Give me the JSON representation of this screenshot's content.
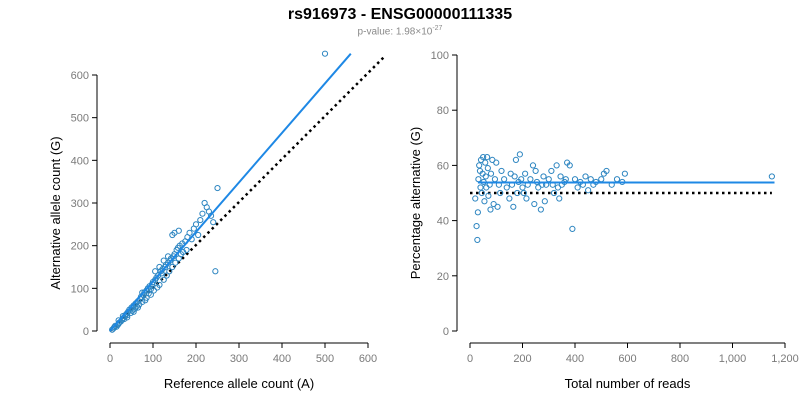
{
  "header": {
    "title": "rs916973 - ENSG00000111335",
    "pvalue_prefix": "p-value: 1.98×10",
    "pvalue_exponent": "-27"
  },
  "chart_data": [
    {
      "type": "scatter",
      "xlabel": "Reference allele count (A)",
      "ylabel": "Alternative allele count (G)",
      "xlim": [
        0,
        600
      ],
      "ylim": [
        0,
        600
      ],
      "xticks": [
        "0",
        "100",
        "200",
        "300",
        "400",
        "500",
        "600"
      ],
      "yticks": [
        "0",
        "100",
        "200",
        "300",
        "400",
        "500",
        "600"
      ],
      "xtick_values": [
        0,
        100,
        200,
        300,
        400,
        500,
        600
      ],
      "ytick_values": [
        0,
        100,
        200,
        300,
        400,
        500,
        600
      ],
      "fit_line": [
        [
          0,
          0
        ],
        [
          560,
          650
        ]
      ],
      "reference_line": [
        [
          0,
          0
        ],
        [
          640,
          645
        ]
      ],
      "points": [
        [
          5,
          3
        ],
        [
          8,
          6
        ],
        [
          10,
          9
        ],
        [
          12,
          12
        ],
        [
          15,
          10
        ],
        [
          18,
          14
        ],
        [
          20,
          17
        ],
        [
          22,
          20
        ],
        [
          25,
          22
        ],
        [
          28,
          26
        ],
        [
          30,
          30
        ],
        [
          33,
          28
        ],
        [
          35,
          35
        ],
        [
          38,
          40
        ],
        [
          40,
          37
        ],
        [
          42,
          45
        ],
        [
          45,
          50
        ],
        [
          48,
          42
        ],
        [
          50,
          55
        ],
        [
          52,
          48
        ],
        [
          55,
          60
        ],
        [
          58,
          52
        ],
        [
          60,
          65
        ],
        [
          62,
          58
        ],
        [
          65,
          70
        ],
        [
          68,
          62
        ],
        [
          70,
          75
        ],
        [
          72,
          80
        ],
        [
          75,
          68
        ],
        [
          78,
          85
        ],
        [
          80,
          90
        ],
        [
          82,
          72
        ],
        [
          85,
          95
        ],
        [
          88,
          100
        ],
        [
          90,
          88
        ],
        [
          92,
          105
        ],
        [
          95,
          98
        ],
        [
          98,
          110
        ],
        [
          100,
          115
        ],
        [
          102,
          95
        ],
        [
          105,
          120
        ],
        [
          108,
          125
        ],
        [
          110,
          102
        ],
        [
          112,
          130
        ],
        [
          115,
          108
        ],
        [
          118,
          140
        ],
        [
          120,
          135
        ],
        [
          122,
          145
        ],
        [
          125,
          120
        ],
        [
          128,
          150
        ],
        [
          130,
          155
        ],
        [
          132,
          130
        ],
        [
          135,
          160
        ],
        [
          138,
          140
        ],
        [
          140,
          165
        ],
        [
          142,
          170
        ],
        [
          145,
          150
        ],
        [
          148,
          175
        ],
        [
          150,
          180
        ],
        [
          152,
          160
        ],
        [
          155,
          190
        ],
        [
          158,
          195
        ],
        [
          160,
          170
        ],
        [
          162,
          200
        ],
        [
          165,
          180
        ],
        [
          168,
          205
        ],
        [
          170,
          185
        ],
        [
          175,
          210
        ],
        [
          178,
          190
        ],
        [
          180,
          220
        ],
        [
          185,
          230
        ],
        [
          190,
          215
        ],
        [
          195,
          240
        ],
        [
          200,
          250
        ],
        [
          205,
          225
        ],
        [
          210,
          260
        ],
        [
          215,
          275
        ],
        [
          220,
          300
        ],
        [
          225,
          290
        ],
        [
          230,
          280
        ],
        [
          235,
          270
        ],
        [
          240,
          255
        ],
        [
          245,
          140
        ],
        [
          250,
          335
        ],
        [
          150,
          230
        ],
        [
          145,
          225
        ],
        [
          160,
          235
        ],
        [
          500,
          650
        ],
        [
          20,
          25
        ],
        [
          30,
          35
        ],
        [
          40,
          32
        ],
        [
          55,
          45
        ],
        [
          65,
          55
        ],
        [
          75,
          90
        ],
        [
          85,
          78
        ],
        [
          95,
          85
        ],
        [
          105,
          140
        ],
        [
          115,
          150
        ],
        [
          125,
          165
        ],
        [
          135,
          175
        ]
      ]
    },
    {
      "type": "scatter",
      "xlabel": "Total number of reads",
      "ylabel": "Percentage alternative (G)",
      "xlim": [
        0,
        1200
      ],
      "ylim": [
        0,
        100
      ],
      "xticks": [
        "0",
        "200",
        "400",
        "600",
        "800",
        "1,000",
        "1,200"
      ],
      "yticks": [
        "0",
        "20",
        "40",
        "60",
        "80",
        "100"
      ],
      "xtick_values": [
        0,
        200,
        400,
        600,
        800,
        1000,
        1200
      ],
      "ytick_values": [
        0,
        20,
        40,
        60,
        80,
        100
      ],
      "fit_line": [
        [
          30,
          53.8
        ],
        [
          1160,
          53.8
        ]
      ],
      "reference_line": [
        [
          0,
          50
        ],
        [
          1150,
          50
        ]
      ],
      "points": [
        [
          20,
          48
        ],
        [
          25,
          38
        ],
        [
          28,
          33
        ],
        [
          30,
          43
        ],
        [
          32,
          55
        ],
        [
          35,
          60
        ],
        [
          38,
          58
        ],
        [
          40,
          52
        ],
        [
          42,
          62
        ],
        [
          45,
          50
        ],
        [
          48,
          57
        ],
        [
          50,
          63
        ],
        [
          52,
          54
        ],
        [
          55,
          47
        ],
        [
          58,
          61
        ],
        [
          60,
          56
        ],
        [
          62,
          52
        ],
        [
          65,
          63
        ],
        [
          68,
          59
        ],
        [
          70,
          49
        ],
        [
          75,
          53
        ],
        [
          78,
          44
        ],
        [
          80,
          57
        ],
        [
          85,
          62
        ],
        [
          90,
          46
        ],
        [
          95,
          55
        ],
        [
          100,
          61
        ],
        [
          105,
          45
        ],
        [
          110,
          53
        ],
        [
          115,
          50
        ],
        [
          120,
          58
        ],
        [
          130,
          55
        ],
        [
          140,
          52
        ],
        [
          150,
          48
        ],
        [
          155,
          57
        ],
        [
          160,
          53
        ],
        [
          165,
          45
        ],
        [
          170,
          56
        ],
        [
          175,
          62
        ],
        [
          180,
          50
        ],
        [
          185,
          54
        ],
        [
          190,
          64
        ],
        [
          195,
          55
        ],
        [
          200,
          52
        ],
        [
          205,
          50
        ],
        [
          210,
          57
        ],
        [
          215,
          48
        ],
        [
          220,
          53
        ],
        [
          230,
          55
        ],
        [
          240,
          60
        ],
        [
          245,
          46
        ],
        [
          250,
          58
        ],
        [
          255,
          54
        ],
        [
          260,
          52
        ],
        [
          270,
          44
        ],
        [
          275,
          53
        ],
        [
          280,
          56
        ],
        [
          285,
          47
        ],
        [
          290,
          53
        ],
        [
          300,
          55
        ],
        [
          310,
          58
        ],
        [
          315,
          53
        ],
        [
          320,
          50
        ],
        [
          330,
          60
        ],
        [
          335,
          52
        ],
        [
          340,
          48
        ],
        [
          345,
          56
        ],
        [
          350,
          53
        ],
        [
          360,
          54
        ],
        [
          370,
          61
        ],
        [
          380,
          60
        ],
        [
          390,
          37
        ],
        [
          400,
          55
        ],
        [
          410,
          52
        ],
        [
          420,
          54
        ],
        [
          430,
          53
        ],
        [
          440,
          56
        ],
        [
          450,
          51
        ],
        [
          460,
          55
        ],
        [
          470,
          53
        ],
        [
          480,
          54
        ],
        [
          500,
          55
        ],
        [
          510,
          57
        ],
        [
          520,
          58
        ],
        [
          540,
          53
        ],
        [
          560,
          55
        ],
        [
          580,
          54
        ],
        [
          590,
          57
        ],
        [
          1150,
          56
        ],
        [
          365,
          55
        ]
      ]
    }
  ]
}
